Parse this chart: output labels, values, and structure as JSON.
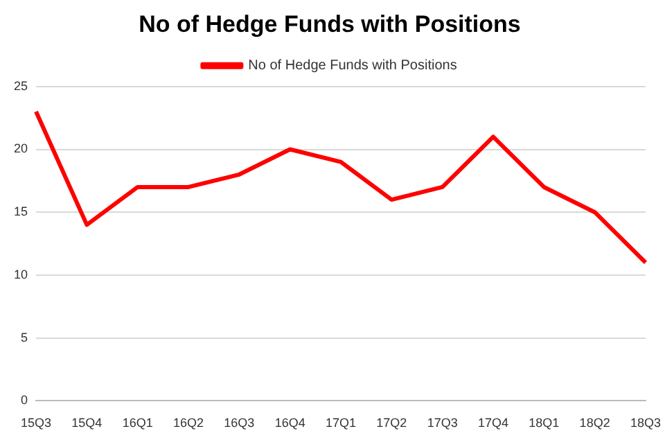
{
  "chart_data": {
    "type": "line",
    "title": "No of Hedge Funds with Positions",
    "categories": [
      "15Q3",
      "15Q4",
      "16Q1",
      "16Q2",
      "16Q3",
      "16Q4",
      "17Q1",
      "17Q2",
      "17Q3",
      "17Q4",
      "18Q1",
      "18Q2",
      "18Q3"
    ],
    "series": [
      {
        "name": "No of Hedge Funds with Positions",
        "color": "#ff0000",
        "values": [
          23,
          14,
          17,
          17,
          18,
          20,
          19,
          16,
          17,
          21,
          17,
          15,
          11
        ]
      }
    ],
    "ylim": [
      0,
      25
    ],
    "yticks": [
      0,
      5,
      10,
      15,
      20,
      25
    ],
    "grid": "y",
    "legend": "top",
    "marker": "none",
    "line_style": "solid"
  }
}
